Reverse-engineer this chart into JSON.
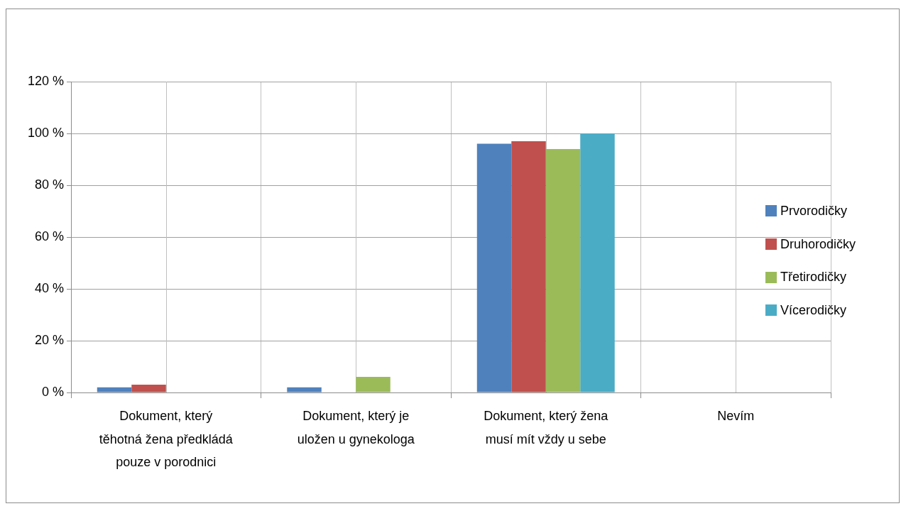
{
  "chart_data": {
    "type": "bar",
    "categories": [
      "Dokument, který těhotná žena předkládá pouze v porodnici",
      "Dokument, který je uložen u gynekologa",
      "Dokument, který žena musí mít vždy u sebe",
      "Nevím"
    ],
    "series": [
      {
        "name": "Prvorodičky",
        "color": "#4f81bd",
        "values": [
          2,
          2,
          96,
          0
        ]
      },
      {
        "name": "Druhorodičky",
        "color": "#c0504d",
        "values": [
          3,
          0,
          97,
          0
        ]
      },
      {
        "name": "Třetirodičky",
        "color": "#9bbb59",
        "values": [
          0,
          6,
          94,
          0
        ]
      },
      {
        "name": "Vícerodičky",
        "color": "#4bacc6",
        "values": [
          0,
          0,
          100,
          0
        ]
      }
    ],
    "ylim": [
      0,
      120
    ],
    "yticks": [
      {
        "value": 0,
        "label": "0 %"
      },
      {
        "value": 20,
        "label": "20 %"
      },
      {
        "value": 40,
        "label": "40 %"
      },
      {
        "value": 60,
        "label": "60 %"
      },
      {
        "value": 80,
        "label": "80 %"
      },
      {
        "value": 100,
        "label": "100 %"
      },
      {
        "value": 120,
        "label": "120 %"
      }
    ],
    "grid": true,
    "legend": "right"
  }
}
